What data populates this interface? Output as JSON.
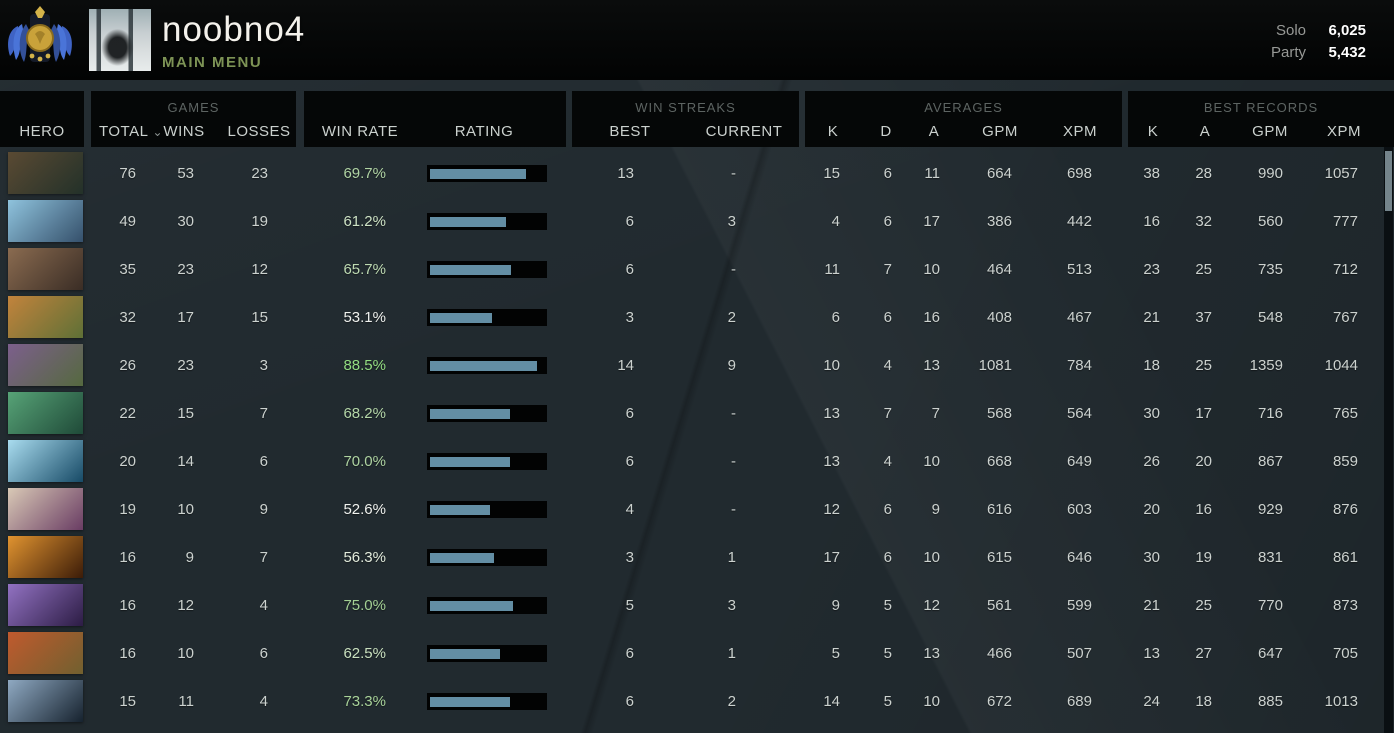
{
  "header": {
    "username": "noobno4",
    "subtitle": "MAIN MENU",
    "solo_label": "Solo",
    "solo_value": "6,025",
    "party_label": "Party",
    "party_value": "5,432"
  },
  "icons": {
    "sort_desc": "⌄",
    "rank_medal": "rank-medal",
    "avatar": "player-avatar"
  },
  "colors": {
    "rating_fill": "#638ea4",
    "accent_green": "#93dd82",
    "menu_green": "#7d9355"
  },
  "table": {
    "groups": {
      "games": "GAMES",
      "win_streaks": "WIN STREAKS",
      "averages": "AVERAGES",
      "best_records": "BEST RECORDS"
    },
    "columns": {
      "hero": "HERO",
      "total": "TOTAL",
      "wins": "WINS",
      "losses": "LOSSES",
      "win_rate": "WIN RATE",
      "rating": "RATING",
      "best": "BEST",
      "current": "CURRENT",
      "k": "K",
      "d": "D",
      "a": "A",
      "gpm": "GPM",
      "xpm": "XPM",
      "rec_k": "K",
      "rec_a": "A",
      "rec_gpm": "GPM",
      "rec_xpm": "XPM"
    },
    "rows": [
      {
        "icon_colors": [
          "#5a4a33",
          "#233129"
        ],
        "total": "76",
        "wins": "53",
        "losses": "23",
        "win_rate": "69.7%",
        "win_rate_color": "#b0d4a4",
        "rating_pct": 84,
        "best": "13",
        "current": "-",
        "k": "15",
        "d": "6",
        "a": "11",
        "gpm": "664",
        "xpm": "698",
        "rk": "38",
        "ra": "28",
        "rgpm": "990",
        "rxpm": "1057"
      },
      {
        "icon_colors": [
          "#8fc3dd",
          "#35506b"
        ],
        "total": "49",
        "wins": "30",
        "losses": "19",
        "win_rate": "61.2%",
        "win_rate_color": "#cde2c4",
        "rating_pct": 67,
        "best": "6",
        "current": "3",
        "k": "4",
        "d": "6",
        "a": "17",
        "gpm": "386",
        "xpm": "442",
        "rk": "16",
        "ra": "32",
        "rgpm": "560",
        "rxpm": "777"
      },
      {
        "icon_colors": [
          "#8a6b50",
          "#3a2d25"
        ],
        "total": "35",
        "wins": "23",
        "losses": "12",
        "win_rate": "65.7%",
        "win_rate_color": "#bedab2",
        "rating_pct": 71,
        "best": "6",
        "current": "-",
        "k": "11",
        "d": "7",
        "a": "10",
        "gpm": "464",
        "xpm": "513",
        "rk": "23",
        "ra": "25",
        "rgpm": "735",
        "rxpm": "712"
      },
      {
        "icon_colors": [
          "#c2833c",
          "#5e7036"
        ],
        "total": "32",
        "wins": "17",
        "losses": "15",
        "win_rate": "53.1%",
        "win_rate_color": "#eff1ee",
        "rating_pct": 54,
        "best": "3",
        "current": "2",
        "k": "6",
        "d": "6",
        "a": "16",
        "gpm": "408",
        "xpm": "467",
        "rk": "21",
        "ra": "37",
        "rgpm": "548",
        "rxpm": "767"
      },
      {
        "icon_colors": [
          "#7c5f8c",
          "#55693f"
        ],
        "total": "26",
        "wins": "23",
        "losses": "3",
        "win_rate": "88.5%",
        "win_rate_color": "#93dd82",
        "rating_pct": 94,
        "best": "14",
        "current": "9",
        "k": "10",
        "d": "4",
        "a": "13",
        "gpm": "1081",
        "xpm": "784",
        "rk": "18",
        "ra": "25",
        "rgpm": "1359",
        "rxpm": "1044"
      },
      {
        "icon_colors": [
          "#57a377",
          "#1f4a38"
        ],
        "total": "22",
        "wins": "15",
        "losses": "7",
        "win_rate": "68.2%",
        "win_rate_color": "#b4d6a8",
        "rating_pct": 70,
        "best": "6",
        "current": "-",
        "k": "13",
        "d": "7",
        "a": "7",
        "gpm": "568",
        "xpm": "564",
        "rk": "30",
        "ra": "17",
        "rgpm": "716",
        "rxpm": "765"
      },
      {
        "icon_colors": [
          "#a9dcef",
          "#174a66"
        ],
        "total": "20",
        "wins": "14",
        "losses": "6",
        "win_rate": "70.0%",
        "win_rate_color": "#aed3a1",
        "rating_pct": 70,
        "best": "6",
        "current": "-",
        "k": "13",
        "d": "4",
        "a": "10",
        "gpm": "668",
        "xpm": "649",
        "rk": "26",
        "ra": "20",
        "rgpm": "867",
        "rxpm": "859"
      },
      {
        "icon_colors": [
          "#d9c9b6",
          "#693c63"
        ],
        "total": "19",
        "wins": "10",
        "losses": "9",
        "win_rate": "52.6%",
        "win_rate_color": "#f0f2ef",
        "rating_pct": 53,
        "best": "4",
        "current": "-",
        "k": "12",
        "d": "6",
        "a": "9",
        "gpm": "616",
        "xpm": "603",
        "rk": "20",
        "ra": "16",
        "rgpm": "929",
        "rxpm": "876"
      },
      {
        "icon_colors": [
          "#e09330",
          "#3c1c08"
        ],
        "total": "16",
        "wins": "9",
        "losses": "7",
        "win_rate": "56.3%",
        "win_rate_color": "#e2ebdc",
        "rating_pct": 56,
        "best": "3",
        "current": "1",
        "k": "17",
        "d": "6",
        "a": "10",
        "gpm": "615",
        "xpm": "646",
        "rk": "30",
        "ra": "19",
        "rgpm": "831",
        "rxpm": "861"
      },
      {
        "icon_colors": [
          "#9272c2",
          "#2c1c44"
        ],
        "total": "16",
        "wins": "12",
        "losses": "4",
        "win_rate": "75.0%",
        "win_rate_color": "#a3d094",
        "rating_pct": 73,
        "best": "5",
        "current": "3",
        "k": "9",
        "d": "5",
        "a": "12",
        "gpm": "561",
        "xpm": "599",
        "rk": "21",
        "ra": "25",
        "rgpm": "770",
        "rxpm": "873"
      },
      {
        "icon_colors": [
          "#c05a2e",
          "#71602f"
        ],
        "total": "16",
        "wins": "10",
        "losses": "6",
        "win_rate": "62.5%",
        "win_rate_color": "#c9e0bf",
        "rating_pct": 61,
        "best": "6",
        "current": "1",
        "k": "5",
        "d": "5",
        "a": "13",
        "gpm": "466",
        "xpm": "507",
        "rk": "13",
        "ra": "27",
        "rgpm": "647",
        "rxpm": "705"
      },
      {
        "icon_colors": [
          "#8fa9c2",
          "#16222e"
        ],
        "total": "15",
        "wins": "11",
        "losses": "4",
        "win_rate": "73.3%",
        "win_rate_color": "#a8d299",
        "rating_pct": 70,
        "best": "6",
        "current": "2",
        "k": "14",
        "d": "5",
        "a": "10",
        "gpm": "672",
        "xpm": "689",
        "rk": "24",
        "ra": "18",
        "rgpm": "885",
        "rxpm": "1013"
      }
    ]
  }
}
